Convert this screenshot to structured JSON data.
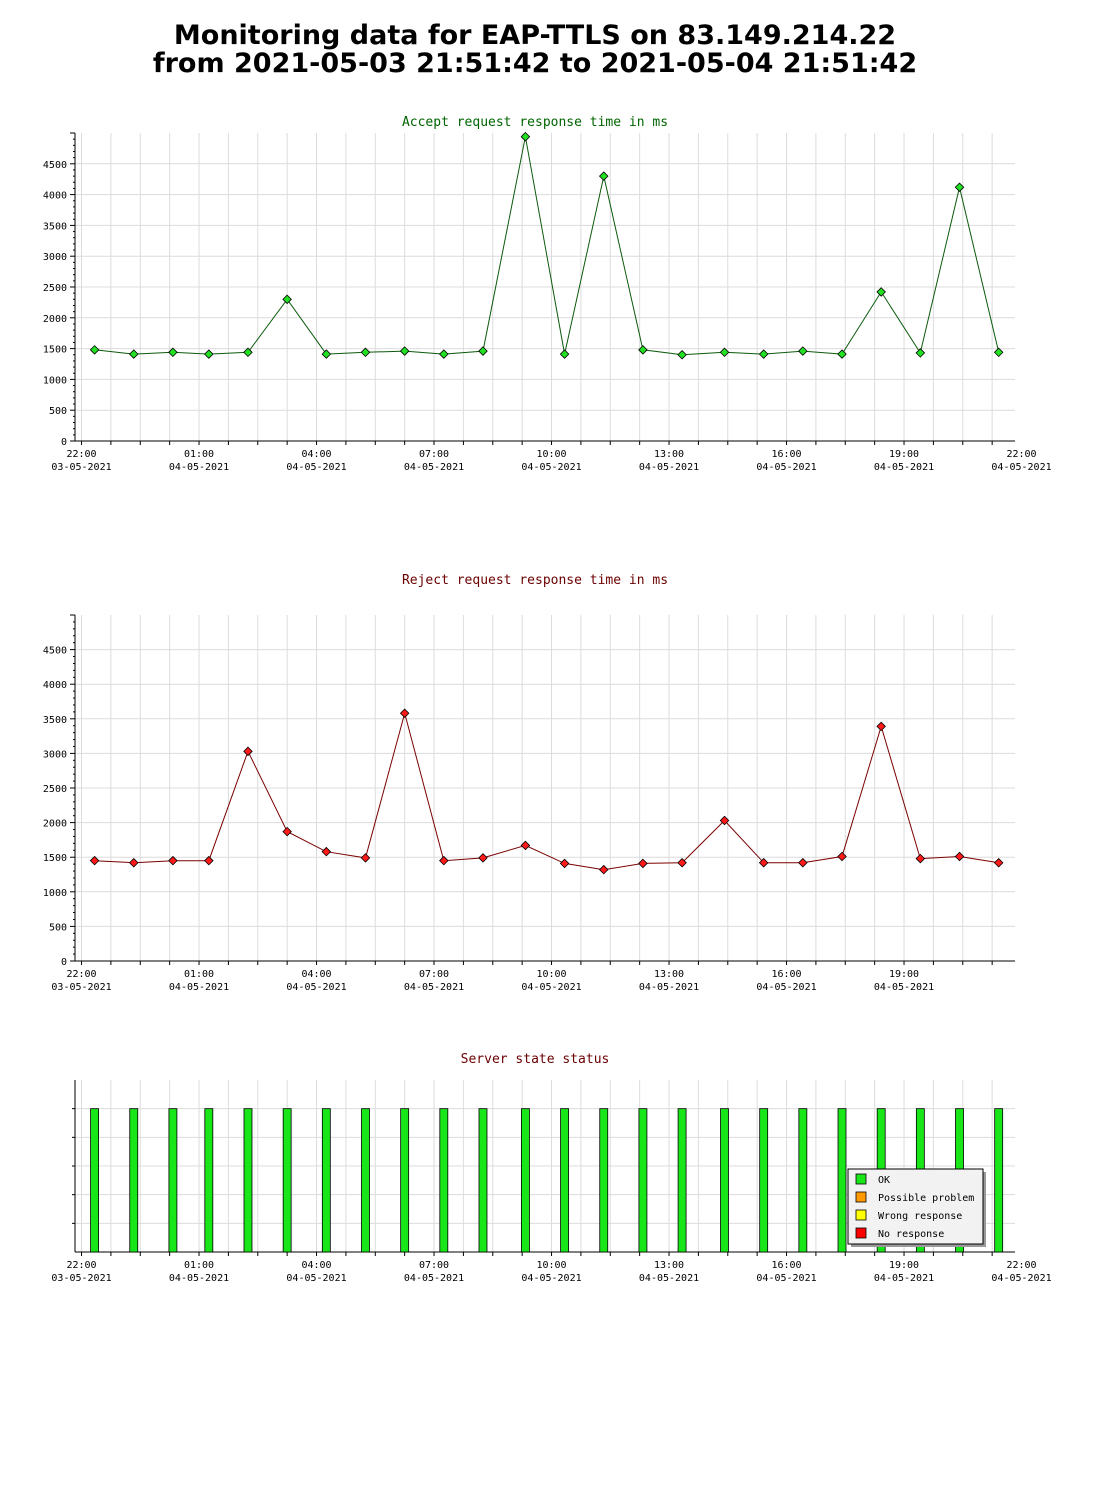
{
  "header": {
    "line1": "Monitoring data for EAP-TTLS on 83.149.214.22",
    "line2": "from 2021-05-03 21:51:42 to 2021-05-04 21:51:42"
  },
  "colors": {
    "accept_line": "#0b5a0b",
    "accept_marker": "#22e022",
    "reject_line": "#7a0000",
    "reject_marker": "#ff1a1a",
    "accept_title": "#006400",
    "reject_title": "#6b0000",
    "status_title": "#6b0000",
    "grid": "#dcdcdc"
  },
  "chart_data": [
    {
      "type": "line",
      "title": "Accept request response time in ms",
      "xlim": [
        -2,
        286
      ],
      "ylim": [
        0,
        5000
      ],
      "yticks": [
        0,
        500,
        1000,
        1500,
        2000,
        2500,
        3000,
        3500,
        4000,
        4500
      ],
      "xticks": [
        {
          "t": 0,
          "time": "22:00",
          "date": "03-05-2021"
        },
        {
          "t": 36,
          "time": "01:00",
          "date": "04-05-2021"
        },
        {
          "t": 72,
          "time": "04:00",
          "date": "04-05-2021"
        },
        {
          "t": 108,
          "time": "07:00",
          "date": "04-05-2021"
        },
        {
          "t": 144,
          "time": "10:00",
          "date": "04-05-2021"
        },
        {
          "t": 180,
          "time": "13:00",
          "date": "04-05-2021"
        },
        {
          "t": 216,
          "time": "16:00",
          "date": "04-05-2021"
        },
        {
          "t": 252,
          "time": "19:00",
          "date": "04-05-2021"
        },
        {
          "t": 288,
          "time": "22:00",
          "date": "04-05-2021"
        }
      ],
      "series": [
        {
          "x": [
            4,
            16,
            28,
            39,
            51,
            63,
            75,
            87,
            99,
            111,
            123,
            136,
            148,
            160,
            172,
            184,
            197,
            209,
            221,
            233,
            245,
            257,
            269,
            281
          ],
          "values": [
            1480,
            1410,
            1440,
            1410,
            1440,
            2300,
            1410,
            1440,
            1460,
            1410,
            1460,
            4940,
            1410,
            4300,
            1480,
            1400,
            1440,
            1410,
            1460,
            1410,
            2420,
            1430,
            4120,
            1440
          ]
        }
      ]
    },
    {
      "type": "line",
      "title": "Reject request response time in ms",
      "xlim": [
        -2,
        286
      ],
      "ylim": [
        0,
        5000
      ],
      "yticks": [
        0,
        500,
        1000,
        1500,
        2000,
        2500,
        3000,
        3500,
        4000,
        4500
      ],
      "xticks": [
        {
          "t": 0,
          "time": "22:00",
          "date": "03-05-2021"
        },
        {
          "t": 36,
          "time": "01:00",
          "date": "04-05-2021"
        },
        {
          "t": 72,
          "time": "04:00",
          "date": "04-05-2021"
        },
        {
          "t": 108,
          "time": "07:00",
          "date": "04-05-2021"
        },
        {
          "t": 144,
          "time": "10:00",
          "date": "04-05-2021"
        },
        {
          "t": 180,
          "time": "13:00",
          "date": "04-05-2021"
        },
        {
          "t": 216,
          "time": "16:00",
          "date": "04-05-2021"
        },
        {
          "t": 252,
          "time": "19:00",
          "date": "04-05-2021"
        }
      ],
      "series": [
        {
          "x": [
            4,
            16,
            28,
            39,
            51,
            63,
            75,
            87,
            99,
            111,
            123,
            136,
            148,
            160,
            172,
            184,
            197,
            209,
            221,
            233,
            245,
            257,
            269,
            281
          ],
          "values": [
            1450,
            1420,
            1450,
            1450,
            3030,
            1870,
            1580,
            1490,
            3580,
            1450,
            1490,
            1670,
            1410,
            1320,
            1410,
            1420,
            2030,
            1420,
            1420,
            1510,
            3390,
            1480,
            1510,
            1420
          ]
        }
      ]
    },
    {
      "type": "bar",
      "title": "Server state status",
      "xlim": [
        -2,
        286
      ],
      "xticks": [
        {
          "t": 0,
          "time": "22:00",
          "date": "03-05-2021"
        },
        {
          "t": 36,
          "time": "01:00",
          "date": "04-05-2021"
        },
        {
          "t": 72,
          "time": "04:00",
          "date": "04-05-2021"
        },
        {
          "t": 108,
          "time": "07:00",
          "date": "04-05-2021"
        },
        {
          "t": 144,
          "time": "10:00",
          "date": "04-05-2021"
        },
        {
          "t": 180,
          "time": "13:00",
          "date": "04-05-2021"
        },
        {
          "t": 216,
          "time": "16:00",
          "date": "04-05-2021"
        },
        {
          "t": 252,
          "time": "19:00",
          "date": "04-05-2021"
        },
        {
          "t": 288,
          "time": "22:00",
          "date": "04-05-2021"
        }
      ],
      "x": [
        4,
        16,
        28,
        39,
        51,
        63,
        75,
        87,
        99,
        111,
        123,
        136,
        148,
        160,
        172,
        184,
        197,
        209,
        221,
        233,
        245,
        257,
        269,
        281
      ],
      "states": [
        "OK",
        "OK",
        "OK",
        "OK",
        "OK",
        "OK",
        "OK",
        "OK",
        "OK",
        "OK",
        "OK",
        "OK",
        "OK",
        "OK",
        "OK",
        "OK",
        "OK",
        "OK",
        "OK",
        "OK",
        "OK",
        "OK",
        "OK",
        "OK"
      ],
      "legend": [
        {
          "label": "OK",
          "color": "#19e619"
        },
        {
          "label": "Possible problem",
          "color": "#ff9900"
        },
        {
          "label": "Wrong response",
          "color": "#ffff00"
        },
        {
          "label": "No response",
          "color": "#ff0000"
        }
      ],
      "legend_position": "bottom-right"
    }
  ]
}
